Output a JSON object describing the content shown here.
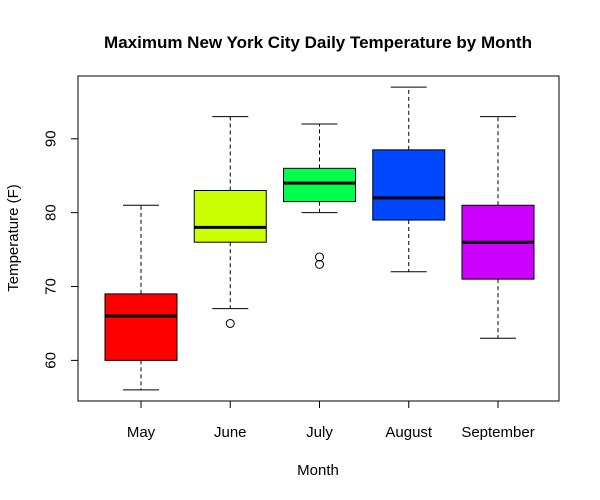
{
  "chart_data": {
    "type": "boxplot",
    "title": "Maximum New York City Daily Temperature by Month",
    "xlabel": "Month",
    "ylabel": "Temperature (F)",
    "ylim": [
      54.5,
      98.5
    ],
    "yticks": [
      60,
      70,
      80,
      90
    ],
    "categories": [
      "May",
      "June",
      "July",
      "August",
      "September"
    ],
    "boxes": [
      {
        "name": "May",
        "whisker_low": 56,
        "q1": 60,
        "median": 66,
        "q3": 69,
        "whisker_high": 81,
        "outliers": [],
        "color": "#FF0000"
      },
      {
        "name": "June",
        "whisker_low": 67,
        "q1": 76,
        "median": 78,
        "q3": 83,
        "whisker_high": 93,
        "outliers": [
          65
        ],
        "color": "#CCFF00"
      },
      {
        "name": "July",
        "whisker_low": 80,
        "q1": 81.5,
        "median": 84,
        "q3": 86,
        "whisker_high": 92,
        "outliers": [
          73,
          74
        ],
        "color": "#00FF4D"
      },
      {
        "name": "August",
        "whisker_low": 72,
        "q1": 79,
        "median": 82,
        "q3": 88.5,
        "whisker_high": 97,
        "outliers": [],
        "color": "#0047FF"
      },
      {
        "name": "September",
        "whisker_low": 63,
        "q1": 71,
        "median": 76,
        "q3": 81,
        "whisker_high": 93,
        "outliers": [],
        "color": "#CC00FF"
      }
    ]
  }
}
